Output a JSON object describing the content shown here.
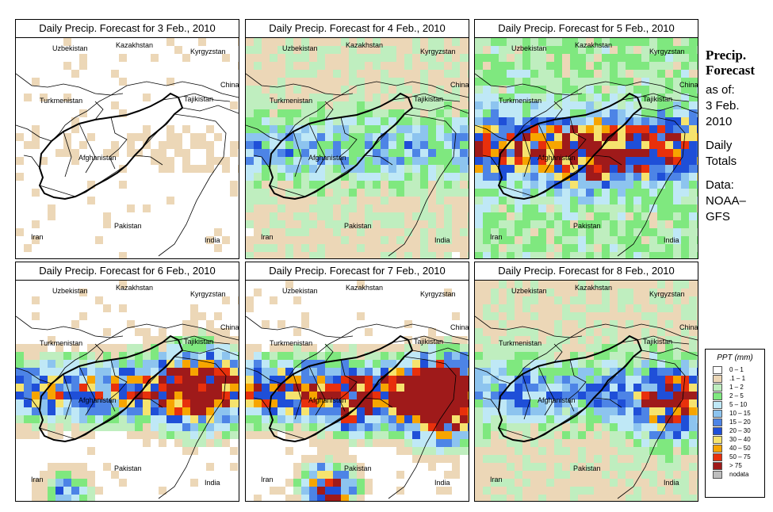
{
  "panels": [
    {
      "title": "Daily Precip. Forecast for  3 Feb., 2010",
      "intensity": 0.6
    },
    {
      "title": "Daily Precip. Forecast for  4 Feb., 2010",
      "intensity": 1.5
    },
    {
      "title": "Daily Precip. Forecast for  5 Feb., 2010",
      "intensity": 2.6
    },
    {
      "title": "Daily Precip. Forecast for  6 Feb., 2010",
      "intensity": 2.9
    },
    {
      "title": "Daily Precip. Forecast for  7 Feb., 2010",
      "intensity": 3.6
    },
    {
      "title": "Daily Precip. Forecast for  8 Feb., 2010",
      "intensity": 2.2
    }
  ],
  "map_labels": {
    "kazakhstan": "Kazakhstan",
    "uzbekistan": "Uzbekistan",
    "kyrgyzstan": "Kyrgyzstan",
    "turkmenistan": "Turkmenistan",
    "tajikistan": "Tajikistan",
    "china": "China",
    "afghanistan": "Afghanistan",
    "pakistan": "Pakistan",
    "iran": "Iran",
    "india": "India"
  },
  "side": {
    "title_line1": "Precip.",
    "title_line2": "Forecast",
    "asof": "as of:",
    "date_line1": "3 Feb.",
    "date_line2": "2010",
    "daily": "Daily",
    "totals": "Totals",
    "data_label": "Data:",
    "source1": "NOAA–",
    "source2": "GFS"
  },
  "legend": {
    "title": "PPT (mm)",
    "items": [
      {
        "label": "0 – 1",
        "color": "#ffffff"
      },
      {
        "label": ".1 – 1",
        "color": "#ecd7b7"
      },
      {
        "label": "1 – 2",
        "color": "#bfeebf"
      },
      {
        "label": "2 – 5",
        "color": "#7fe87f"
      },
      {
        "label": "5 – 10",
        "color": "#bfe8f6"
      },
      {
        "label": "10 – 15",
        "color": "#8dc4ef"
      },
      {
        "label": "15 – 20",
        "color": "#4d84e6"
      },
      {
        "label": "20 – 30",
        "color": "#1f4fd8"
      },
      {
        "label": "30 – 40",
        "color": "#f6e36e"
      },
      {
        "label": "40 – 50",
        "color": "#f7a500"
      },
      {
        "label": "50 – 75",
        "color": "#e8300c"
      },
      {
        "label": "> 75",
        "color": "#9f1a1a"
      },
      {
        "label": "nodata",
        "color": "#bdbdbd"
      }
    ]
  }
}
